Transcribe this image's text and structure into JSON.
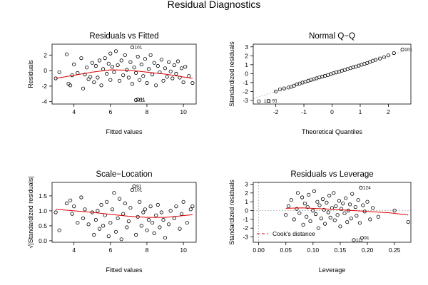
{
  "figure_title": "Residual Diagnostics",
  "chart_data": [
    {
      "type": "scatter",
      "title": "Residuals vs Fitted",
      "xlabel": "Fitted values",
      "ylabel": "Residuals",
      "xlim": [
        2.8,
        10.7
      ],
      "ylim": [
        -4.3,
        3.4
      ],
      "xticks": [
        4,
        6,
        8,
        10
      ],
      "yticks": [
        -4,
        -2,
        0,
        2
      ],
      "smooth": [
        [
          3.0,
          -1.0
        ],
        [
          4.0,
          -0.6
        ],
        [
          5.0,
          -0.2
        ],
        [
          6.0,
          0.1
        ],
        [
          7.0,
          0.05
        ],
        [
          8.0,
          -0.2
        ],
        [
          9.0,
          -0.45
        ],
        [
          10.5,
          -1.0
        ]
      ],
      "annotations": [
        {
          "label": "101",
          "x": 7.2,
          "y": 3.0
        },
        {
          "label": "91",
          "x": 7.5,
          "y": -3.7
        },
        {
          "label": "111",
          "x": 7.4,
          "y": -3.8
        }
      ],
      "points": [
        [
          3.0,
          -1.0
        ],
        [
          3.2,
          -0.2
        ],
        [
          3.6,
          2.1
        ],
        [
          3.7,
          -1.7
        ],
        [
          3.8,
          -1.9
        ],
        [
          3.9,
          -0.6
        ],
        [
          4.0,
          0.8
        ],
        [
          4.2,
          -0.3
        ],
        [
          4.4,
          1.6
        ],
        [
          4.5,
          -2.3
        ],
        [
          4.6,
          -0.5
        ],
        [
          4.7,
          0.4
        ],
        [
          4.8,
          -1.1
        ],
        [
          4.9,
          -0.8
        ],
        [
          5.0,
          1.0
        ],
        [
          5.1,
          -1.5
        ],
        [
          5.2,
          0.6
        ],
        [
          5.3,
          -0.9
        ],
        [
          5.4,
          1.3
        ],
        [
          5.5,
          -1.9
        ],
        [
          5.6,
          0.2
        ],
        [
          5.7,
          1.6
        ],
        [
          5.8,
          -0.4
        ],
        [
          5.9,
          0.9
        ],
        [
          6.0,
          2.2
        ],
        [
          6.0,
          -1.2
        ],
        [
          6.1,
          0.5
        ],
        [
          6.2,
          -0.2
        ],
        [
          6.3,
          2.5
        ],
        [
          6.4,
          0.7
        ],
        [
          6.5,
          -1.3
        ],
        [
          6.6,
          1.3
        ],
        [
          6.7,
          -0.6
        ],
        [
          6.8,
          2.0
        ],
        [
          6.9,
          0.1
        ],
        [
          7.0,
          -0.9
        ],
        [
          7.1,
          1.1
        ],
        [
          7.2,
          3.0
        ],
        [
          7.2,
          -1.7
        ],
        [
          7.3,
          0.4
        ],
        [
          7.4,
          -0.3
        ],
        [
          7.5,
          1.8
        ],
        [
          7.5,
          -3.7
        ],
        [
          7.4,
          -3.8
        ],
        [
          7.6,
          -1.2
        ],
        [
          7.7,
          0.8
        ],
        [
          7.8,
          -0.7
        ],
        [
          7.9,
          1.5
        ],
        [
          8.0,
          -1.6
        ],
        [
          8.1,
          0.2
        ],
        [
          8.2,
          2.0
        ],
        [
          8.3,
          -0.5
        ],
        [
          8.4,
          1.0
        ],
        [
          8.5,
          -1.9
        ],
        [
          8.6,
          0.6
        ],
        [
          8.7,
          -0.2
        ],
        [
          8.8,
          1.4
        ],
        [
          8.9,
          -1.3
        ],
        [
          9.0,
          0.3
        ],
        [
          9.1,
          -0.8
        ],
        [
          9.2,
          1.1
        ],
        [
          9.3,
          -0.1
        ],
        [
          9.4,
          -1.0
        ],
        [
          9.5,
          0.7
        ],
        [
          9.6,
          -0.4
        ],
        [
          9.7,
          1.2
        ],
        [
          9.8,
          -0.9
        ],
        [
          9.9,
          0.3
        ],
        [
          10.0,
          -1.5
        ],
        [
          10.1,
          0.5
        ],
        [
          10.3,
          -0.7
        ],
        [
          10.5,
          -1.6
        ]
      ]
    },
    {
      "type": "scatter",
      "title": "Normal Q−Q",
      "xlabel": "Theoretical Quantiles",
      "ylabel": "Standardized residuals",
      "xlim": [
        -2.8,
        2.8
      ],
      "ylim": [
        -3.4,
        3.3
      ],
      "xticks": [
        -2,
        -1,
        0,
        1,
        2
      ],
      "yticks": [
        -3,
        -2,
        -1,
        0,
        1,
        2,
        3
      ],
      "reference_line": [
        [
          -2.8,
          -2.8
        ],
        [
          2.8,
          2.8
        ]
      ],
      "annotations": [
        {
          "label": "101",
          "x": 2.5,
          "y": 2.7
        },
        {
          "label": "91",
          "x": -2.2,
          "y": -3.05
        },
        {
          "label": "111",
          "x": -2.5,
          "y": -3.1
        }
      ],
      "points": [
        [
          -2.6,
          -3.1
        ],
        [
          -2.25,
          -3.05
        ],
        [
          -2.0,
          -2.0
        ],
        [
          -1.85,
          -1.75
        ],
        [
          -1.7,
          -1.65
        ],
        [
          -1.55,
          -1.55
        ],
        [
          -1.45,
          -1.45
        ],
        [
          -1.35,
          -1.35
        ],
        [
          -1.25,
          -1.2
        ],
        [
          -1.15,
          -1.1
        ],
        [
          -1.05,
          -1.0
        ],
        [
          -0.95,
          -0.9
        ],
        [
          -0.85,
          -0.8
        ],
        [
          -0.75,
          -0.7
        ],
        [
          -0.65,
          -0.62
        ],
        [
          -0.55,
          -0.52
        ],
        [
          -0.45,
          -0.42
        ],
        [
          -0.35,
          -0.33
        ],
        [
          -0.25,
          -0.24
        ],
        [
          -0.15,
          -0.15
        ],
        [
          -0.05,
          -0.05
        ],
        [
          0.05,
          0.05
        ],
        [
          0.15,
          0.14
        ],
        [
          0.25,
          0.23
        ],
        [
          0.35,
          0.33
        ],
        [
          0.45,
          0.42
        ],
        [
          0.55,
          0.52
        ],
        [
          0.65,
          0.61
        ],
        [
          0.75,
          0.71
        ],
        [
          0.85,
          0.8
        ],
        [
          0.95,
          0.9
        ],
        [
          1.05,
          1.0
        ],
        [
          1.15,
          1.1
        ],
        [
          1.25,
          1.2
        ],
        [
          1.35,
          1.32
        ],
        [
          1.45,
          1.45
        ],
        [
          1.55,
          1.55
        ],
        [
          1.7,
          1.7
        ],
        [
          1.85,
          1.85
        ],
        [
          2.0,
          2.05
        ],
        [
          2.2,
          2.3
        ],
        [
          2.5,
          2.7
        ]
      ]
    },
    {
      "type": "scatter",
      "title": "Scale−Location",
      "xlabel": "Fitted values",
      "ylabel": "√|Standardized residuals|",
      "xlim": [
        2.8,
        10.7
      ],
      "ylim": [
        -0.05,
        1.95
      ],
      "xticks": [
        4,
        6,
        8,
        10
      ],
      "yticks": [
        0.0,
        0.5,
        1.0,
        1.5
      ],
      "smooth": [
        [
          3.0,
          1.05
        ],
        [
          4.0,
          1.0
        ],
        [
          5.0,
          0.95
        ],
        [
          6.0,
          0.88
        ],
        [
          7.0,
          0.82
        ],
        [
          8.0,
          0.78
        ],
        [
          9.0,
          0.78
        ],
        [
          10.5,
          0.87
        ]
      ],
      "annotations": [
        {
          "label": "91",
          "x": 7.3,
          "y": 1.82
        },
        {
          "label": "101",
          "x": 7.2,
          "y": 1.7
        }
      ],
      "points": [
        [
          3.0,
          0.95
        ],
        [
          3.2,
          0.35
        ],
        [
          3.6,
          1.25
        ],
        [
          3.8,
          1.35
        ],
        [
          3.9,
          0.9
        ],
        [
          4.0,
          1.15
        ],
        [
          4.2,
          0.6
        ],
        [
          4.4,
          1.45
        ],
        [
          4.5,
          0.75
        ],
        [
          4.6,
          1.05
        ],
        [
          4.8,
          0.55
        ],
        [
          5.0,
          0.95
        ],
        [
          5.1,
          0.2
        ],
        [
          5.2,
          0.7
        ],
        [
          5.3,
          1.0
        ],
        [
          5.4,
          0.4
        ],
        [
          5.5,
          1.2
        ],
        [
          5.6,
          0.5
        ],
        [
          5.7,
          0.85
        ],
        [
          5.8,
          1.3
        ],
        [
          5.9,
          0.15
        ],
        [
          6.0,
          0.6
        ],
        [
          6.1,
          1.05
        ],
        [
          6.2,
          1.6
        ],
        [
          6.3,
          0.3
        ],
        [
          6.4,
          0.75
        ],
        [
          6.5,
          1.4
        ],
        [
          6.6,
          0.05
        ],
        [
          6.7,
          0.9
        ],
        [
          6.8,
          1.25
        ],
        [
          6.9,
          0.45
        ],
        [
          7.0,
          0.65
        ],
        [
          7.1,
          1.1
        ],
        [
          7.2,
          1.7
        ],
        [
          7.3,
          1.82
        ],
        [
          7.4,
          0.2
        ],
        [
          7.5,
          0.8
        ],
        [
          7.6,
          1.3
        ],
        [
          7.7,
          0.5
        ],
        [
          7.8,
          0.95
        ],
        [
          7.9,
          1.05
        ],
        [
          8.0,
          0.35
        ],
        [
          8.1,
          0.7
        ],
        [
          8.2,
          1.15
        ],
        [
          8.3,
          0.6
        ],
        [
          8.4,
          0.25
        ],
        [
          8.5,
          0.85
        ],
        [
          8.6,
          1.2
        ],
        [
          8.7,
          0.45
        ],
        [
          8.8,
          0.95
        ],
        [
          8.9,
          0.7
        ],
        [
          9.0,
          0.1
        ],
        [
          9.2,
          0.55
        ],
        [
          9.3,
          1.0
        ],
        [
          9.5,
          0.75
        ],
        [
          9.6,
          1.15
        ],
        [
          9.8,
          0.4
        ],
        [
          9.9,
          0.9
        ],
        [
          10.0,
          1.3
        ],
        [
          10.2,
          0.6
        ],
        [
          10.4,
          1.05
        ],
        [
          10.5,
          1.15
        ]
      ]
    },
    {
      "type": "scatter",
      "title": "Residuals vs Leverage",
      "xlabel": "Leverage",
      "ylabel": "Standardized residuals",
      "xlim": [
        -0.01,
        0.28
      ],
      "ylim": [
        -3.6,
        3.2
      ],
      "xticks": [
        0.0,
        0.05,
        0.1,
        0.15,
        0.2,
        0.25
      ],
      "yticks": [
        -3,
        -2,
        -1,
        0,
        1,
        2,
        3
      ],
      "legend": {
        "label": "Cook's distance",
        "position": "bottom-left"
      },
      "smooth": [
        [
          0.05,
          0.25
        ],
        [
          0.08,
          0.3
        ],
        [
          0.12,
          0.2
        ],
        [
          0.16,
          0.05
        ],
        [
          0.2,
          -0.1
        ],
        [
          0.24,
          -0.25
        ],
        [
          0.275,
          -0.5
        ]
      ],
      "annotations": [
        {
          "label": "124",
          "x": 0.188,
          "y": 2.6
        },
        {
          "label": "111",
          "x": 0.175,
          "y": -3.35
        },
        {
          "label": "91",
          "x": 0.19,
          "y": -3.1
        }
      ],
      "points": [
        [
          0.05,
          -0.5
        ],
        [
          0.055,
          0.5
        ],
        [
          0.06,
          1.2
        ],
        [
          0.065,
          -1.0
        ],
        [
          0.07,
          0.2
        ],
        [
          0.072,
          2.0
        ],
        [
          0.075,
          -0.3
        ],
        [
          0.08,
          1.5
        ],
        [
          0.082,
          -1.6
        ],
        [
          0.085,
          0.8
        ],
        [
          0.088,
          -0.7
        ],
        [
          0.09,
          0.4
        ],
        [
          0.092,
          1.8
        ],
        [
          0.095,
          -1.2
        ],
        [
          0.1,
          0.0
        ],
        [
          0.102,
          2.2
        ],
        [
          0.105,
          -0.4
        ],
        [
          0.108,
          1.0
        ],
        [
          0.11,
          -2.0
        ],
        [
          0.112,
          0.6
        ],
        [
          0.115,
          -0.9
        ],
        [
          0.118,
          1.3
        ],
        [
          0.12,
          0.1
        ],
        [
          0.122,
          -1.5
        ],
        [
          0.125,
          0.9
        ],
        [
          0.128,
          -0.2
        ],
        [
          0.13,
          1.7
        ],
        [
          0.132,
          -0.8
        ],
        [
          0.135,
          0.3
        ],
        [
          0.138,
          2.0
        ],
        [
          0.14,
          -1.1
        ],
        [
          0.142,
          0.5
        ],
        [
          0.145,
          -0.5
        ],
        [
          0.148,
          1.1
        ],
        [
          0.15,
          -1.8
        ],
        [
          0.152,
          0.2
        ],
        [
          0.155,
          0.8
        ],
        [
          0.158,
          -0.3
        ],
        [
          0.16,
          1.4
        ],
        [
          0.163,
          -1.3
        ],
        [
          0.165,
          0.0
        ],
        [
          0.168,
          0.7
        ],
        [
          0.17,
          -0.9
        ],
        [
          0.172,
          1.9
        ],
        [
          0.175,
          -3.35
        ],
        [
          0.178,
          0.4
        ],
        [
          0.18,
          -0.6
        ],
        [
          0.183,
          1.2
        ],
        [
          0.186,
          -1.4
        ],
        [
          0.188,
          2.6
        ],
        [
          0.19,
          -3.1
        ],
        [
          0.192,
          0.6
        ],
        [
          0.195,
          -0.1
        ],
        [
          0.2,
          1.0
        ],
        [
          0.205,
          -1.0
        ],
        [
          0.21,
          0.3
        ],
        [
          0.22,
          -0.7
        ],
        [
          0.25,
          0.0
        ],
        [
          0.275,
          -1.3
        ]
      ]
    }
  ]
}
